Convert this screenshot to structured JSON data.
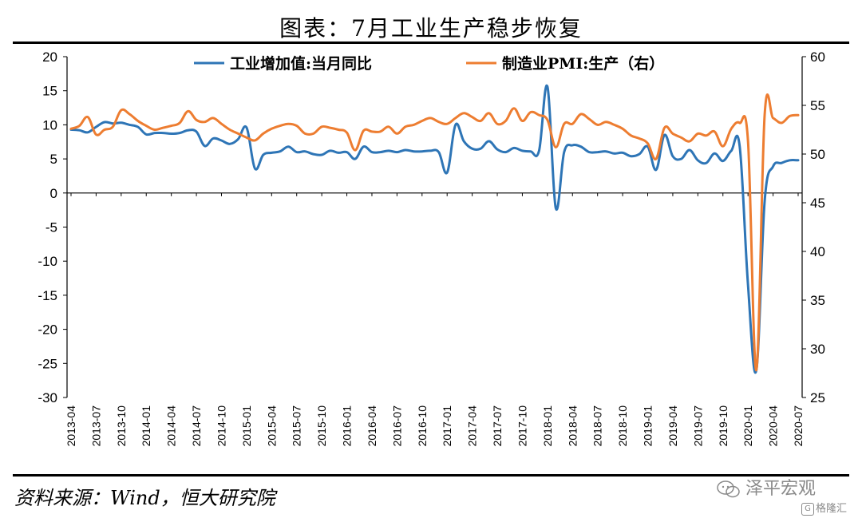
{
  "title": "图表：7月工业生产稳步恢复",
  "source": "资料来源：Wind，恒大研究院",
  "watermark": {
    "account": "泽平宏观",
    "platform": "格隆汇"
  },
  "colors": {
    "blue": "#2e75b6",
    "orange": "#ed7d31"
  },
  "chart_data": {
    "type": "line",
    "legend": [
      "工业增加值:当月同比",
      "制造业PMI:生产（右）"
    ],
    "x": [
      "2013-04",
      "2013-05",
      "2013-06",
      "2013-07",
      "2013-08",
      "2013-09",
      "2013-10",
      "2013-11",
      "2013-12",
      "2014-01",
      "2014-02",
      "2014-03",
      "2014-04",
      "2014-05",
      "2014-06",
      "2014-07",
      "2014-08",
      "2014-09",
      "2014-10",
      "2014-11",
      "2014-12",
      "2015-01",
      "2015-02",
      "2015-03",
      "2015-04",
      "2015-05",
      "2015-06",
      "2015-07",
      "2015-08",
      "2015-09",
      "2015-10",
      "2015-11",
      "2015-12",
      "2016-01",
      "2016-02",
      "2016-03",
      "2016-04",
      "2016-05",
      "2016-06",
      "2016-07",
      "2016-08",
      "2016-09",
      "2016-10",
      "2016-11",
      "2016-12",
      "2017-01",
      "2017-02",
      "2017-03",
      "2017-04",
      "2017-05",
      "2017-06",
      "2017-07",
      "2017-08",
      "2017-09",
      "2017-10",
      "2017-11",
      "2017-12",
      "2018-01",
      "2018-02",
      "2018-03",
      "2018-04",
      "2018-05",
      "2018-06",
      "2018-07",
      "2018-08",
      "2018-09",
      "2018-10",
      "2018-11",
      "2018-12",
      "2019-01",
      "2019-02",
      "2019-03",
      "2019-04",
      "2019-05",
      "2019-06",
      "2019-07",
      "2019-08",
      "2019-09",
      "2019-10",
      "2019-11",
      "2019-12",
      "2020-01",
      "2020-02",
      "2020-03",
      "2020-04",
      "2020-05",
      "2020-06",
      "2020-07"
    ],
    "xticks": [
      "2013-04",
      "2013-07",
      "2013-10",
      "2014-01",
      "2014-04",
      "2014-07",
      "2014-10",
      "2015-01",
      "2015-04",
      "2015-07",
      "2015-10",
      "2016-01",
      "2016-04",
      "2016-07",
      "2016-10",
      "2017-01",
      "2017-04",
      "2017-07",
      "2017-10",
      "2018-01",
      "2018-04",
      "2018-07",
      "2018-10",
      "2019-01",
      "2019-04",
      "2019-07",
      "2019-10",
      "2020-01",
      "2020-04",
      "2020-07"
    ],
    "y_left": {
      "min": -30,
      "max": 20,
      "ticks": [
        "20",
        "15",
        "10",
        "5",
        "0",
        "-5",
        "-10",
        "-15",
        "-20",
        "-25",
        "-30"
      ]
    },
    "y_right": {
      "min": 25,
      "max": 60,
      "ticks": [
        "60",
        "55",
        "50",
        "45",
        "40",
        "35",
        "30",
        "25"
      ]
    },
    "series": [
      {
        "name": "工业增加值:当月同比",
        "axis": "left",
        "color": "#2e75b6",
        "values": [
          9.3,
          9.2,
          8.9,
          9.7,
          10.4,
          10.2,
          10.3,
          10.0,
          9.7,
          8.6,
          8.8,
          8.8,
          8.7,
          8.8,
          9.2,
          9.0,
          6.9,
          8.0,
          7.7,
          7.2,
          7.9,
          9.6,
          3.6,
          5.6,
          5.9,
          6.1,
          6.8,
          6.0,
          6.1,
          5.7,
          5.6,
          6.2,
          5.9,
          6.0,
          5.0,
          6.8,
          6.0,
          6.0,
          6.2,
          6.0,
          6.3,
          6.1,
          6.1,
          6.2,
          6.0,
          3.0,
          10.0,
          7.6,
          6.5,
          6.5,
          7.6,
          6.4,
          6.0,
          6.6,
          6.2,
          6.1,
          6.2,
          15.6,
          -2.2,
          6.0,
          7.0,
          6.8,
          6.0,
          6.0,
          6.1,
          5.8,
          5.9,
          5.4,
          5.7,
          6.8,
          3.4,
          8.5,
          5.4,
          5.0,
          6.3,
          4.8,
          4.4,
          5.8,
          4.7,
          6.2,
          6.9,
          -13.5,
          -26.0,
          -1.1,
          3.9,
          4.4,
          4.8,
          4.8
        ]
      },
      {
        "name": "制造业PMI:生产（右）",
        "axis": "right",
        "color": "#ed7d31",
        "values": [
          52.6,
          52.9,
          53.8,
          52.0,
          52.5,
          52.8,
          54.5,
          54.1,
          53.4,
          52.9,
          52.5,
          52.7,
          52.9,
          53.2,
          54.4,
          53.5,
          53.3,
          53.7,
          53.1,
          52.5,
          52.1,
          51.7,
          51.4,
          52.1,
          52.6,
          52.9,
          53.1,
          52.9,
          52.1,
          52.1,
          52.8,
          52.7,
          52.5,
          52.2,
          50.4,
          52.4,
          52.3,
          52.3,
          52.8,
          52.1,
          52.8,
          53.0,
          53.4,
          53.7,
          53.3,
          53.1,
          53.7,
          54.2,
          53.8,
          53.4,
          54.2,
          53.1,
          53.4,
          54.7,
          53.4,
          54.3,
          54.0,
          53.5,
          50.7,
          53.1,
          53.1,
          54.1,
          53.6,
          53.0,
          53.3,
          53.0,
          52.6,
          51.9,
          51.6,
          51.1,
          49.5,
          52.7,
          52.1,
          51.7,
          51.3,
          52.1,
          51.9,
          52.3,
          50.8,
          52.6,
          53.2,
          51.3,
          27.8,
          54.1,
          53.7,
          53.2,
          53.9,
          54.0
        ]
      }
    ]
  }
}
